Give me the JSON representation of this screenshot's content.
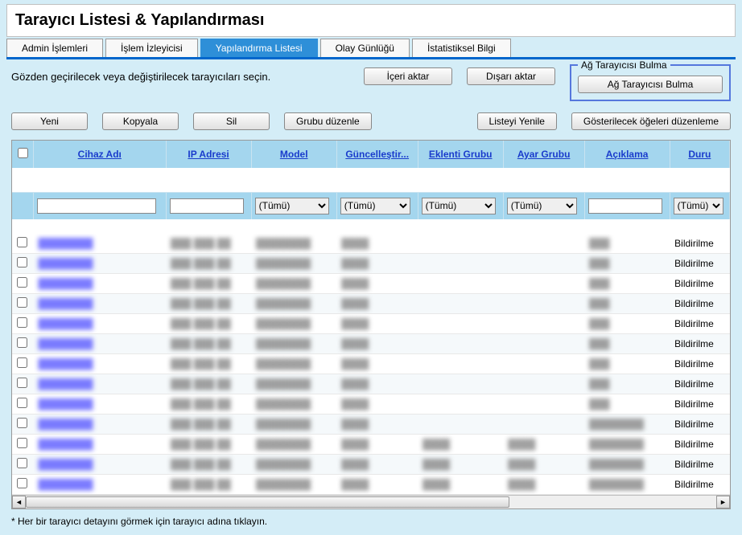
{
  "title": "Tarayıcı Listesi & Yapılandırması",
  "tabs": [
    {
      "label": "Admin İşlemleri",
      "active": false
    },
    {
      "label": "İşlem İzleyicisi",
      "active": false
    },
    {
      "label": "Yapılandırma Listesi",
      "active": true
    },
    {
      "label": "Olay Günlüğü",
      "active": false
    },
    {
      "label": "İstatistiksel Bilgi",
      "active": false
    }
  ],
  "instruction": "Gözden geçirilecek veya değiştirilecek tarayıcıları seçin.",
  "buttons": {
    "import": "İçeri aktar",
    "export": "Dışarı aktar",
    "network_discovery_legend": "Ağ Tarayıcısı Bulma",
    "network_discovery_btn": "Ağ Tarayıcısı Bulma",
    "new": "Yeni",
    "copy": "Kopyala",
    "delete": "Sil",
    "edit_group": "Grubu düzenle",
    "refresh_list": "Listeyi Yenile",
    "edit_columns": "Gösterilecek öğeleri düzenleme"
  },
  "columns": {
    "device_name": "Cihaz Adı",
    "ip_address": "IP Adresi",
    "model": "Model",
    "update": "Güncelleştir...",
    "plugin_group": "Eklenti Grubu",
    "setting_group": "Ayar Grubu",
    "description": "Açıklama",
    "status": "Duru"
  },
  "filter_all": "(Tümü)",
  "status_value": "Bildirilme",
  "row_count": 13,
  "footnote": "* Her bir tarayıcı detayını görmek için tarayıcı adına tıklayın.",
  "colors": {
    "page_bg": "#d4edf7",
    "header_bg": "#a4d6ee",
    "tab_active": "#2e8fd8",
    "tab_border": "#0066cc",
    "link": "#1a3ccc",
    "fieldset_border": "#5577dd"
  }
}
